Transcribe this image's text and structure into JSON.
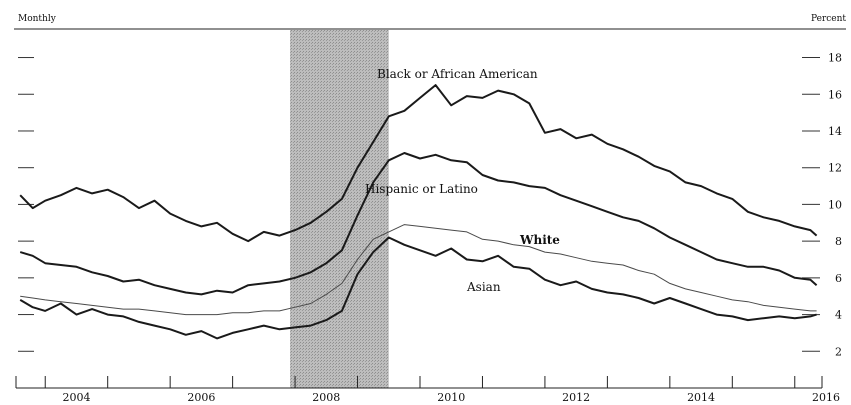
{
  "header": {
    "left_label": "Monthly",
    "right_label": "Percent"
  },
  "chart_data": {
    "type": "line",
    "x_unit": "year",
    "xlim": [
      2003.5,
      2016.5
    ],
    "ylim": [
      0,
      19.5
    ],
    "y_ticks": [
      2,
      4,
      6,
      8,
      10,
      12,
      14,
      16,
      18
    ],
    "x_tick_labels": [
      "2004",
      "2006",
      "2008",
      "2010",
      "2012",
      "2014",
      "2016"
    ],
    "recession_shading": {
      "start": 2007.92,
      "end": 2009.5
    },
    "colors": {
      "line": "#1a1a1a",
      "white_series": "#4a4a4a",
      "recession": "#bdbdbd"
    },
    "series": [
      {
        "name": "Black or African American",
        "points": [
          [
            2003.6,
            10.5
          ],
          [
            2003.8,
            9.8
          ],
          [
            2004.0,
            10.2
          ],
          [
            2004.25,
            10.5
          ],
          [
            2004.5,
            10.9
          ],
          [
            2004.75,
            10.6
          ],
          [
            2005.0,
            10.8
          ],
          [
            2005.25,
            10.4
          ],
          [
            2005.5,
            9.8
          ],
          [
            2005.75,
            10.2
          ],
          [
            2006.0,
            9.5
          ],
          [
            2006.25,
            9.1
          ],
          [
            2006.5,
            8.8
          ],
          [
            2006.75,
            9.0
          ],
          [
            2007.0,
            8.4
          ],
          [
            2007.25,
            8.0
          ],
          [
            2007.5,
            8.5
          ],
          [
            2007.75,
            8.3
          ],
          [
            2008.0,
            8.6
          ],
          [
            2008.25,
            9.0
          ],
          [
            2008.5,
            9.6
          ],
          [
            2008.75,
            10.3
          ],
          [
            2009.0,
            12.0
          ],
          [
            2009.25,
            13.4
          ],
          [
            2009.5,
            14.8
          ],
          [
            2009.75,
            15.1
          ],
          [
            2010.0,
            15.8
          ],
          [
            2010.25,
            16.5
          ],
          [
            2010.5,
            15.4
          ],
          [
            2010.75,
            15.9
          ],
          [
            2011.0,
            15.8
          ],
          [
            2011.25,
            16.2
          ],
          [
            2011.5,
            16.0
          ],
          [
            2011.75,
            15.5
          ],
          [
            2012.0,
            13.9
          ],
          [
            2012.25,
            14.1
          ],
          [
            2012.5,
            13.6
          ],
          [
            2012.75,
            13.8
          ],
          [
            2013.0,
            13.3
          ],
          [
            2013.25,
            13.0
          ],
          [
            2013.5,
            12.6
          ],
          [
            2013.75,
            12.1
          ],
          [
            2014.0,
            11.8
          ],
          [
            2014.25,
            11.2
          ],
          [
            2014.5,
            11.0
          ],
          [
            2014.75,
            10.6
          ],
          [
            2015.0,
            10.3
          ],
          [
            2015.25,
            9.6
          ],
          [
            2015.5,
            9.3
          ],
          [
            2015.75,
            9.1
          ],
          [
            2016.0,
            8.8
          ],
          [
            2016.25,
            8.6
          ],
          [
            2016.35,
            8.3
          ]
        ]
      },
      {
        "name": "Hispanic or Latino",
        "points": [
          [
            2003.6,
            7.4
          ],
          [
            2003.8,
            7.2
          ],
          [
            2004.0,
            6.8
          ],
          [
            2004.25,
            6.7
          ],
          [
            2004.5,
            6.6
          ],
          [
            2004.75,
            6.3
          ],
          [
            2005.0,
            6.1
          ],
          [
            2005.25,
            5.8
          ],
          [
            2005.5,
            5.9
          ],
          [
            2005.75,
            5.6
          ],
          [
            2006.0,
            5.4
          ],
          [
            2006.25,
            5.2
          ],
          [
            2006.5,
            5.1
          ],
          [
            2006.75,
            5.3
          ],
          [
            2007.0,
            5.2
          ],
          [
            2007.25,
            5.6
          ],
          [
            2007.5,
            5.7
          ],
          [
            2007.75,
            5.8
          ],
          [
            2008.0,
            6.0
          ],
          [
            2008.25,
            6.3
          ],
          [
            2008.5,
            6.8
          ],
          [
            2008.75,
            7.5
          ],
          [
            2009.0,
            9.4
          ],
          [
            2009.25,
            11.2
          ],
          [
            2009.5,
            12.4
          ],
          [
            2009.75,
            12.8
          ],
          [
            2010.0,
            12.5
          ],
          [
            2010.25,
            12.7
          ],
          [
            2010.5,
            12.4
          ],
          [
            2010.75,
            12.3
          ],
          [
            2011.0,
            11.6
          ],
          [
            2011.25,
            11.3
          ],
          [
            2011.5,
            11.2
          ],
          [
            2011.75,
            11.0
          ],
          [
            2012.0,
            10.9
          ],
          [
            2012.25,
            10.5
          ],
          [
            2012.5,
            10.2
          ],
          [
            2012.75,
            9.9
          ],
          [
            2013.0,
            9.6
          ],
          [
            2013.25,
            9.3
          ],
          [
            2013.5,
            9.1
          ],
          [
            2013.75,
            8.7
          ],
          [
            2014.0,
            8.2
          ],
          [
            2014.25,
            7.8
          ],
          [
            2014.5,
            7.4
          ],
          [
            2014.75,
            7.0
          ],
          [
            2015.0,
            6.8
          ],
          [
            2015.25,
            6.6
          ],
          [
            2015.5,
            6.6
          ],
          [
            2015.75,
            6.4
          ],
          [
            2016.0,
            6.0
          ],
          [
            2016.25,
            5.9
          ],
          [
            2016.35,
            5.6
          ]
        ]
      },
      {
        "name": "White",
        "points": [
          [
            2003.6,
            5.0
          ],
          [
            2003.8,
            4.9
          ],
          [
            2004.0,
            4.8
          ],
          [
            2004.25,
            4.7
          ],
          [
            2004.5,
            4.6
          ],
          [
            2004.75,
            4.5
          ],
          [
            2005.0,
            4.4
          ],
          [
            2005.25,
            4.3
          ],
          [
            2005.5,
            4.3
          ],
          [
            2005.75,
            4.2
          ],
          [
            2006.0,
            4.1
          ],
          [
            2006.25,
            4.0
          ],
          [
            2006.5,
            4.0
          ],
          [
            2006.75,
            4.0
          ],
          [
            2007.0,
            4.1
          ],
          [
            2007.25,
            4.1
          ],
          [
            2007.5,
            4.2
          ],
          [
            2007.75,
            4.2
          ],
          [
            2008.0,
            4.4
          ],
          [
            2008.25,
            4.6
          ],
          [
            2008.5,
            5.1
          ],
          [
            2008.75,
            5.7
          ],
          [
            2009.0,
            7.0
          ],
          [
            2009.25,
            8.1
          ],
          [
            2009.5,
            8.5
          ],
          [
            2009.75,
            8.9
          ],
          [
            2010.0,
            8.8
          ],
          [
            2010.25,
            8.7
          ],
          [
            2010.5,
            8.6
          ],
          [
            2010.75,
            8.5
          ],
          [
            2011.0,
            8.1
          ],
          [
            2011.25,
            8.0
          ],
          [
            2011.5,
            7.8
          ],
          [
            2011.75,
            7.7
          ],
          [
            2012.0,
            7.4
          ],
          [
            2012.25,
            7.3
          ],
          [
            2012.5,
            7.1
          ],
          [
            2012.75,
            6.9
          ],
          [
            2013.0,
            6.8
          ],
          [
            2013.25,
            6.7
          ],
          [
            2013.5,
            6.4
          ],
          [
            2013.75,
            6.2
          ],
          [
            2014.0,
            5.7
          ],
          [
            2014.25,
            5.4
          ],
          [
            2014.5,
            5.2
          ],
          [
            2014.75,
            5.0
          ],
          [
            2015.0,
            4.8
          ],
          [
            2015.25,
            4.7
          ],
          [
            2015.5,
            4.5
          ],
          [
            2015.75,
            4.4
          ],
          [
            2016.0,
            4.3
          ],
          [
            2016.25,
            4.2
          ],
          [
            2016.35,
            4.2
          ]
        ]
      },
      {
        "name": "Asian",
        "points": [
          [
            2003.6,
            4.8
          ],
          [
            2003.8,
            4.4
          ],
          [
            2004.0,
            4.2
          ],
          [
            2004.25,
            4.6
          ],
          [
            2004.5,
            4.0
          ],
          [
            2004.75,
            4.3
          ],
          [
            2005.0,
            4.0
          ],
          [
            2005.25,
            3.9
          ],
          [
            2005.5,
            3.6
          ],
          [
            2005.75,
            3.4
          ],
          [
            2006.0,
            3.2
          ],
          [
            2006.25,
            2.9
          ],
          [
            2006.5,
            3.1
          ],
          [
            2006.75,
            2.7
          ],
          [
            2007.0,
            3.0
          ],
          [
            2007.25,
            3.2
          ],
          [
            2007.5,
            3.4
          ],
          [
            2007.75,
            3.2
          ],
          [
            2008.0,
            3.3
          ],
          [
            2008.25,
            3.4
          ],
          [
            2008.5,
            3.7
          ],
          [
            2008.75,
            4.2
          ],
          [
            2009.0,
            6.2
          ],
          [
            2009.25,
            7.4
          ],
          [
            2009.5,
            8.2
          ],
          [
            2009.75,
            7.8
          ],
          [
            2010.0,
            7.5
          ],
          [
            2010.25,
            7.2
          ],
          [
            2010.5,
            7.6
          ],
          [
            2010.75,
            7.0
          ],
          [
            2011.0,
            6.9
          ],
          [
            2011.25,
            7.2
          ],
          [
            2011.5,
            6.6
          ],
          [
            2011.75,
            6.5
          ],
          [
            2012.0,
            5.9
          ],
          [
            2012.25,
            5.6
          ],
          [
            2012.5,
            5.8
          ],
          [
            2012.75,
            5.4
          ],
          [
            2013.0,
            5.2
          ],
          [
            2013.25,
            5.1
          ],
          [
            2013.5,
            4.9
          ],
          [
            2013.75,
            4.6
          ],
          [
            2014.0,
            4.9
          ],
          [
            2014.25,
            4.6
          ],
          [
            2014.5,
            4.3
          ],
          [
            2014.75,
            4.0
          ],
          [
            2015.0,
            3.9
          ],
          [
            2015.25,
            3.7
          ],
          [
            2015.5,
            3.8
          ],
          [
            2015.75,
            3.9
          ],
          [
            2016.0,
            3.8
          ],
          [
            2016.25,
            3.9
          ],
          [
            2016.35,
            4.0
          ]
        ]
      }
    ]
  }
}
